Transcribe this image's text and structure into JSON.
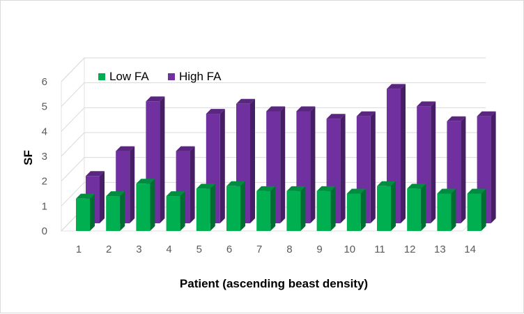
{
  "chart_data": {
    "type": "bar",
    "style": "3d-clustered-column",
    "title": "",
    "xlabel": "Patient (ascending beast density)",
    "ylabel": "SF",
    "ylim": [
      0,
      6
    ],
    "yticks": [
      0,
      1,
      2,
      3,
      4,
      5,
      6
    ],
    "categories": [
      "1",
      "2",
      "3",
      "4",
      "5",
      "6",
      "7",
      "8",
      "9",
      "10",
      "11",
      "12",
      "13",
      "14"
    ],
    "series": [
      {
        "name": "Low FA",
        "color": "#00b050",
        "values": [
          1.3,
          1.4,
          1.9,
          1.4,
          1.7,
          1.8,
          1.6,
          1.6,
          1.6,
          1.5,
          1.8,
          1.7,
          1.5,
          1.5
        ]
      },
      {
        "name": "High FA",
        "color": "#7030a0",
        "values": [
          1.9,
          2.9,
          4.9,
          2.9,
          4.4,
          4.8,
          4.5,
          4.5,
          4.2,
          4.3,
          5.4,
          4.7,
          4.1,
          4.3
        ]
      }
    ],
    "legend": {
      "position": "top-left",
      "entries": [
        "Low FA",
        "High FA"
      ]
    },
    "grid": true
  }
}
